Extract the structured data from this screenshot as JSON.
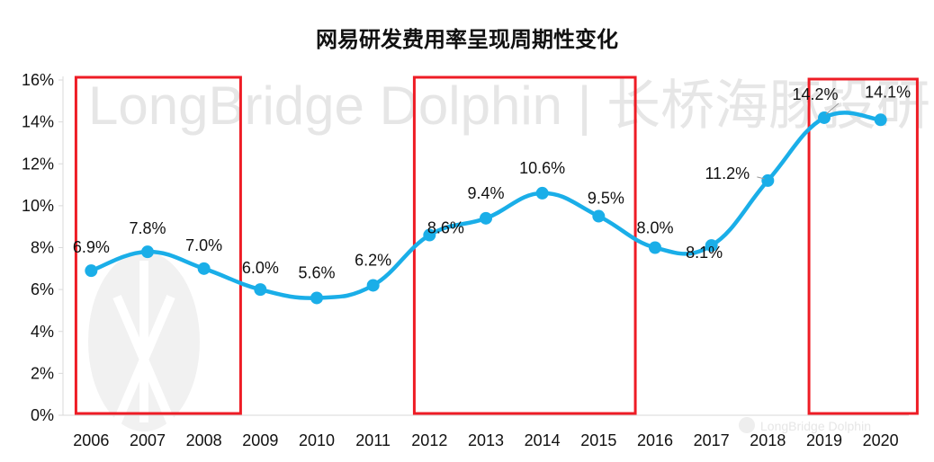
{
  "chart_data": {
    "type": "line",
    "title": "网易研发费用率呈现周期性变化",
    "categories": [
      "2006",
      "2007",
      "2008",
      "2009",
      "2010",
      "2011",
      "2012",
      "2013",
      "2014",
      "2015",
      "2016",
      "2017",
      "2018",
      "2019",
      "2020"
    ],
    "series": [
      {
        "values": [
          6.9,
          7.8,
          7.0,
          6.0,
          5.6,
          6.2,
          8.6,
          9.4,
          10.6,
          9.5,
          8.0,
          8.1,
          11.2,
          14.2,
          14.1
        ],
        "labels": [
          "6.9%",
          "7.8%",
          "7.0%",
          "6.0%",
          "5.6%",
          "6.2%",
          "8.6%",
          "9.4%",
          "10.6%",
          "9.5%",
          "8.0%",
          "8.1%",
          "11.2%",
          "14.2%",
          "14.1%"
        ]
      }
    ],
    "ylim": [
      0,
      16
    ],
    "y_ticks": [
      "0%",
      "2%",
      "4%",
      "6%",
      "8%",
      "10%",
      "12%",
      "14%",
      "16%"
    ],
    "xlabel": "",
    "ylabel": "",
    "grid": false,
    "line_color": "#1aaee8",
    "highlight_color": "#ee1c25",
    "highlight_ranges": [
      [
        "2006",
        "2008"
      ],
      [
        "2012",
        "2015"
      ],
      [
        "2019",
        "2020"
      ]
    ]
  },
  "watermark": {
    "text": "LongBridge Dolphin | 长桥海豚投研",
    "corner_text": "LongBridge Dolphin"
  }
}
